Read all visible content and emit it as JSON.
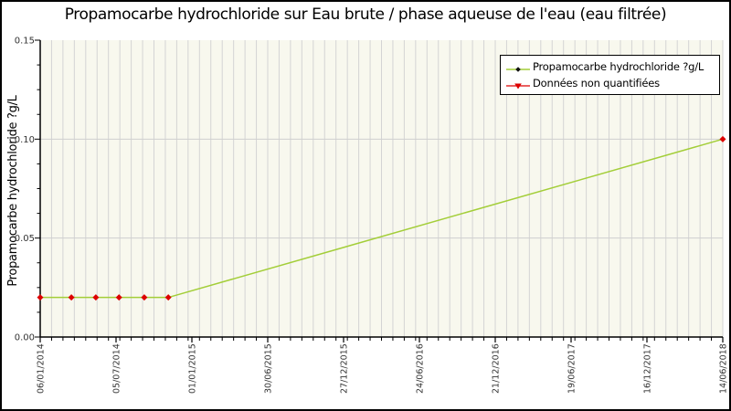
{
  "title": "Propamocarbe hydrochloride sur Eau brute / phase aqueuse de l'eau (eau filtrée)",
  "y_axis_title": "Propamocarbe hydrochloride ?g/L",
  "legend": {
    "items": [
      {
        "label": "Propamocarbe hydrochloride ?g/L",
        "marker": "green-line-black-dot",
        "line_color": "#a3ce38",
        "marker_color": "#111111"
      },
      {
        "label": "Données non quantifiées",
        "marker": "red-line-red-triangle-down",
        "line_color": "#dd0000",
        "marker_color": "#dd0000"
      }
    ]
  },
  "chart_data": {
    "type": "line",
    "title": "Propamocarbe hydrochloride sur Eau brute / phase aqueuse de l'eau (eau filtrée)",
    "xlabel": "",
    "ylabel": "Propamocarbe hydrochloride ?g/L",
    "ylim": [
      0,
      0.15
    ],
    "y_major_ticks": [
      0,
      0.05,
      0.1,
      0.15
    ],
    "y_tick_labels": [
      "0.00",
      "0.05",
      "0.10",
      "0.15"
    ],
    "y_minor_step": 0.0125,
    "x_tick_labels": [
      "06/01/2014",
      "05/07/2014",
      "01/01/2015",
      "30/06/2015",
      "27/12/2015",
      "24/06/2016",
      "21/12/2016",
      "19/06/2017",
      "16/12/2017",
      "14/06/2018"
    ],
    "x_total_days": 1620,
    "x_major_day_step": 180,
    "x_minor_divisions": 60,
    "grid": {
      "horizontal_majors": true,
      "vertical_stripes": true
    },
    "legend_position": "top-right",
    "series": [
      {
        "name": "Propamocarbe hydrochloride ?g/L",
        "line_color": "#a3ce38",
        "marker_color": "#dd0000",
        "marker_shape": "diamond",
        "points": [
          {
            "date": "06/01/2014",
            "day": 0,
            "value": 0.02,
            "quantified": false
          },
          {
            "date": "21/03/2014",
            "day": 74,
            "value": 0.02,
            "quantified": false
          },
          {
            "date": "18/05/2014",
            "day": 132,
            "value": 0.02,
            "quantified": false
          },
          {
            "date": "12/07/2014",
            "day": 187,
            "value": 0.02,
            "quantified": false
          },
          {
            "date": "10/09/2014",
            "day": 247,
            "value": 0.02,
            "quantified": false
          },
          {
            "date": "06/11/2014",
            "day": 304,
            "value": 0.02,
            "quantified": false
          },
          {
            "date": "14/06/2018",
            "day": 1620,
            "value": 0.1,
            "quantified": false
          }
        ]
      }
    ]
  },
  "colors": {
    "page_bg": "#ffffff",
    "frame_border": "#000000",
    "plot_bg": "#f8f8ee",
    "stripe": "#d4d4d4",
    "gridline": "#cfcfcf",
    "axis": "#000000",
    "tick_label": "#333333",
    "line": "#a3ce38",
    "marker": "#dd0000"
  }
}
